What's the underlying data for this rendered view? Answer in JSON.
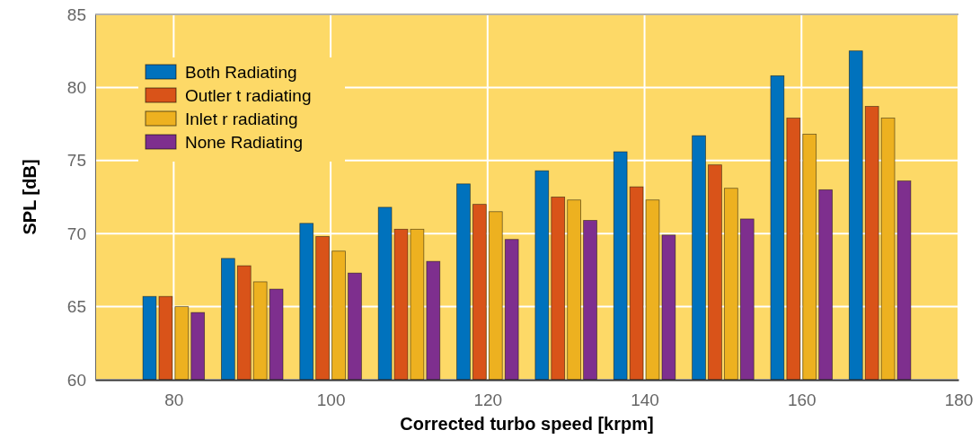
{
  "chart_data": {
    "type": "bar",
    "xlabel": "Corrected turbo speed [krpm]",
    "ylabel": "SPL [dB]",
    "x": [
      80,
      90,
      100,
      110,
      120,
      130,
      140,
      150,
      160,
      170
    ],
    "xlim": [
      70,
      180
    ],
    "xticks": [
      80,
      100,
      120,
      140,
      160,
      180
    ],
    "ylim": [
      60,
      85
    ],
    "yticks": [
      60,
      65,
      70,
      75,
      80,
      85
    ],
    "grid": true,
    "legend": "top left",
    "series": [
      {
        "name": "Both Radiating",
        "color": "#0072bd",
        "values": [
          65.7,
          68.3,
          70.7,
          71.8,
          73.4,
          74.3,
          75.6,
          76.7,
          80.8,
          82.5
        ]
      },
      {
        "name": "Outler t radiating",
        "color": "#d95319",
        "values": [
          65.7,
          67.8,
          69.8,
          70.3,
          72.0,
          72.5,
          73.2,
          74.7,
          77.9,
          78.7
        ]
      },
      {
        "name": "Inlet r radiating",
        "color": "#edb120",
        "values": [
          65.0,
          66.7,
          68.8,
          70.3,
          71.5,
          72.3,
          72.3,
          73.1,
          76.8,
          77.9
        ]
      },
      {
        "name": "None Radiating",
        "color": "#7e2f8e",
        "values": [
          64.6,
          66.2,
          67.3,
          68.1,
          69.6,
          70.9,
          69.9,
          71.0,
          73.0,
          73.6
        ]
      }
    ]
  }
}
